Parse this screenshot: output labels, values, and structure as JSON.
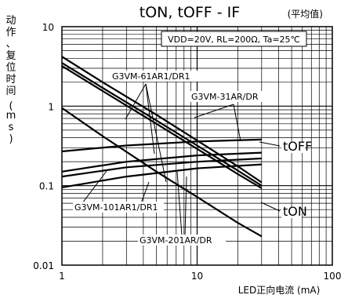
{
  "chart_data": {
    "type": "line",
    "title": "t_ON, t_OFF - I_F",
    "title_main": "tON, tOFF - IF",
    "note": "(平均值)",
    "conditions": "VDD=20V, RL=200Ω, Ta=25℃",
    "xlabel": "LED正向电流 (mA)",
    "ylabel": "动作、复位时间 (ms)",
    "xscale": "log",
    "yscale": "log",
    "xlim": [
      1,
      100
    ],
    "ylim": [
      0.01,
      10
    ],
    "x_ticks": [
      "1",
      "10",
      "100"
    ],
    "y_ticks": [
      "0.01",
      "0.1",
      "1",
      "10"
    ],
    "grid": true,
    "series": [
      {
        "name": "G3VM-61AR1/DR1",
        "values": [
          [
            1,
            3.2
          ],
          [
            2,
            1.55
          ],
          [
            5,
            0.6
          ],
          [
            10,
            0.29
          ],
          [
            20,
            0.14
          ],
          [
            30,
            0.093
          ]
        ]
      },
      {
        "name": "G3VM-31AR/DR",
        "values": [
          [
            1,
            4.2
          ],
          [
            2,
            2.0
          ],
          [
            5,
            0.78
          ],
          [
            10,
            0.37
          ],
          [
            20,
            0.175
          ],
          [
            30,
            0.11
          ]
        ]
      },
      {
        "name": "G3VM-101AR1/DR1",
        "values": [
          [
            1,
            3.5
          ],
          [
            2,
            1.7
          ],
          [
            5,
            0.66
          ],
          [
            10,
            0.32
          ],
          [
            20,
            0.155
          ],
          [
            30,
            0.1
          ]
        ]
      },
      {
        "name": "G3VM-201AR/DR",
        "values": [
          [
            1,
            0.95
          ],
          [
            2,
            0.42
          ],
          [
            5,
            0.15
          ],
          [
            10,
            0.072
          ],
          [
            20,
            0.034
          ],
          [
            30,
            0.023
          ]
        ]
      },
      {
        "name": "G3VM-31AR/DR tOFF",
        "values": [
          [
            1,
            0.27
          ],
          [
            3,
            0.32
          ],
          [
            10,
            0.36
          ],
          [
            30,
            0.38
          ]
        ]
      },
      {
        "name": "G3VM-61AR1/DR1 tOFF",
        "values": [
          [
            1,
            0.15
          ],
          [
            3,
            0.2
          ],
          [
            10,
            0.24
          ],
          [
            30,
            0.26
          ]
        ]
      },
      {
        "name": "G3VM-101AR1/DR1 tOFF",
        "values": [
          [
            1,
            0.13
          ],
          [
            3,
            0.17
          ],
          [
            10,
            0.2
          ],
          [
            30,
            0.22
          ]
        ]
      },
      {
        "name": "G3VM-201AR/DR tOFF",
        "values": [
          [
            1,
            0.095
          ],
          [
            3,
            0.13
          ],
          [
            10,
            0.165
          ],
          [
            30,
            0.185
          ]
        ]
      }
    ],
    "labels": {
      "g61": "G3VM-61AR1/DR1",
      "g31": "G3VM-31AR/DR",
      "g101": "G3VM-101AR1/DR1",
      "g201": "G3VM-201AR/DR",
      "toff": "tOFF",
      "ton": "tON"
    }
  }
}
